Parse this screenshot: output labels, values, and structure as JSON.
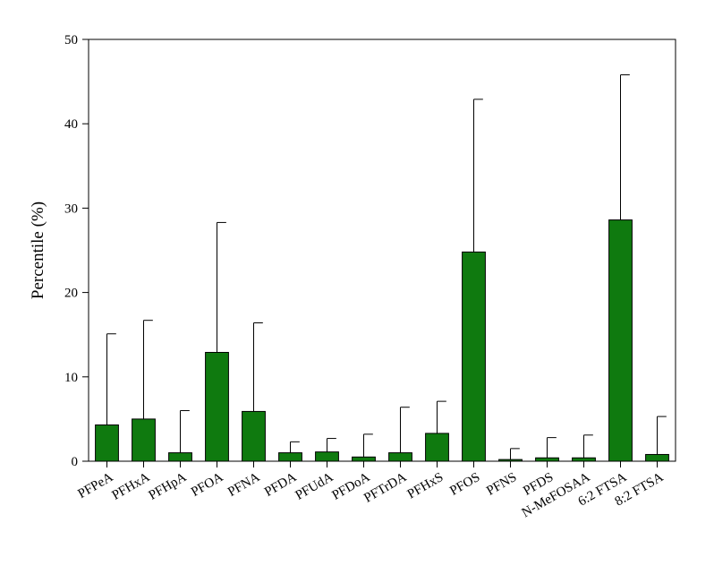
{
  "chart_data": {
    "type": "bar",
    "title": "",
    "xlabel": "",
    "ylabel": "Percentile (%)",
    "ylim": [
      0,
      50
    ],
    "yticks": [
      0,
      10,
      20,
      30,
      40,
      50
    ],
    "grid": false,
    "legend": "none",
    "bar_color": "#0f7a0f",
    "categories": [
      "PFPeA",
      "PFHxA",
      "PFHpA",
      "PFOA",
      "PFNA",
      "PFDA",
      "PFUdA",
      "PFDoA",
      "PFTrDA",
      "PFHxS",
      "PFOS",
      "PFNS",
      "PFDS",
      "N-MeFOSAA",
      "6:2 FTSA",
      "8:2 FTSA"
    ],
    "values": [
      4.3,
      5.0,
      1.0,
      12.9,
      5.9,
      1.0,
      1.1,
      0.5,
      1.0,
      3.3,
      24.8,
      0.2,
      0.4,
      0.4,
      28.6,
      0.8
    ],
    "error_upper": [
      15.1,
      16.7,
      6.0,
      28.3,
      16.4,
      2.3,
      2.7,
      3.2,
      6.4,
      7.1,
      42.9,
      1.5,
      2.8,
      3.1,
      45.8,
      5.3
    ]
  }
}
